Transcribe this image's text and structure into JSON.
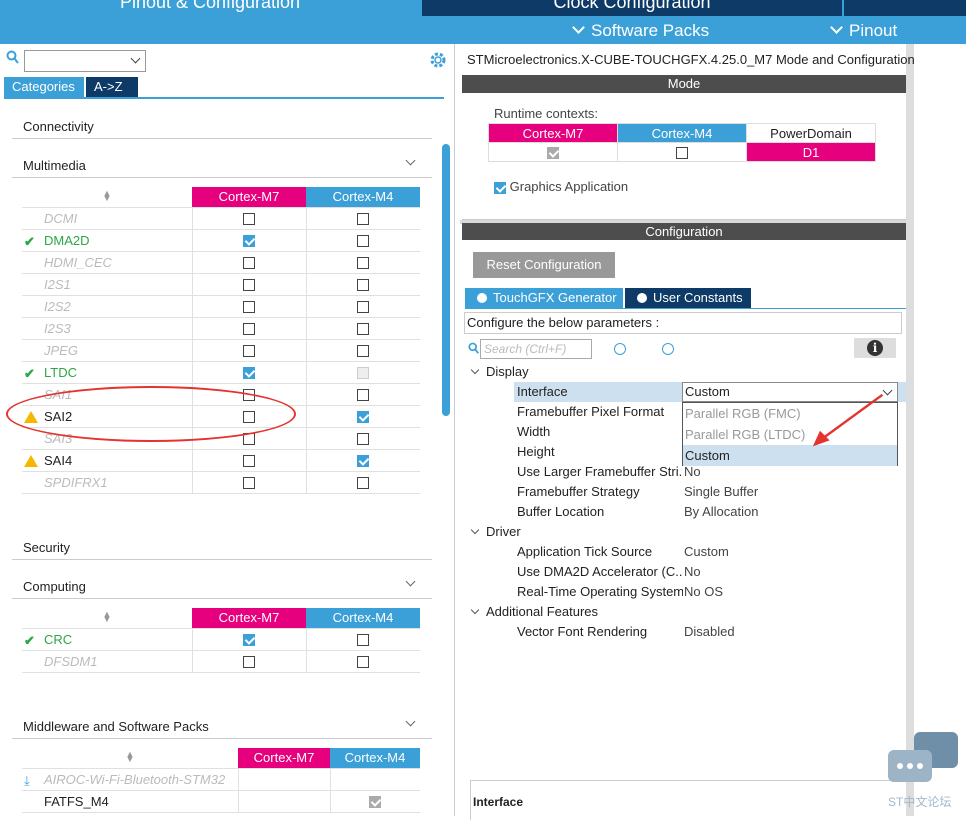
{
  "topnav": {
    "tab_pinout_config": "Pinout & Configuration",
    "tab_clock_config": "Clock Configuration",
    "software_packs": "Software Packs",
    "pinout": "Pinout"
  },
  "left": {
    "search_placeholder": "",
    "tab_categories": "Categories",
    "tab_az": "A->Z",
    "sections": {
      "connectivity": "Connectivity",
      "multimedia": "Multimedia",
      "security": "Security",
      "computing": "Computing",
      "middleware": "Middleware and Software Packs"
    },
    "col_m7": "Cortex-M7",
    "col_m4": "Cortex-M4",
    "multimedia_rows": [
      {
        "name": "DCMI",
        "state": "disabled",
        "m7": "off",
        "m4": "off"
      },
      {
        "name": "DMA2D",
        "state": "ok",
        "m7": "on",
        "m4": "off"
      },
      {
        "name": "HDMI_CEC",
        "state": "disabled",
        "m7": "off",
        "m4": "off"
      },
      {
        "name": "I2S1",
        "state": "disabled",
        "m7": "off",
        "m4": "off"
      },
      {
        "name": "I2S2",
        "state": "disabled",
        "m7": "off",
        "m4": "off"
      },
      {
        "name": "I2S3",
        "state": "disabled",
        "m7": "off",
        "m4": "off"
      },
      {
        "name": "JPEG",
        "state": "disabled",
        "m7": "off",
        "m4": "off"
      },
      {
        "name": "LTDC",
        "state": "ok",
        "m7": "on",
        "m4": "grey"
      },
      {
        "name": "SAI1",
        "state": "disabled",
        "m7": "off",
        "m4": "off"
      },
      {
        "name": "SAI2",
        "state": "warn",
        "m7": "off",
        "m4": "on"
      },
      {
        "name": "SAI3",
        "state": "disabled",
        "m7": "off",
        "m4": "off"
      },
      {
        "name": "SAI4",
        "state": "warn",
        "m7": "off",
        "m4": "on"
      },
      {
        "name": "SPDIFRX1",
        "state": "disabled",
        "m7": "off",
        "m4": "off"
      }
    ],
    "computing_rows": [
      {
        "name": "CRC",
        "state": "ok",
        "m7": "on",
        "m4": "off"
      },
      {
        "name": "DFSDM1",
        "state": "disabled",
        "m7": "off",
        "m4": "off"
      }
    ],
    "middleware_rows": [
      {
        "name": "AIROC-Wi-Fi-Bluetooth-STM32",
        "state": "pack",
        "m7": "",
        "m4": ""
      },
      {
        "name": "FATFS_M4",
        "state": "normal",
        "m7": "",
        "m4": "greyon"
      }
    ]
  },
  "right": {
    "title": "STMicroelectronics.X-CUBE-TOUCHGFX.4.25.0_M7 Mode and Configuration",
    "mode_bar": "Mode",
    "runtime_contexts": "Runtime contexts:",
    "ctx_m7": "Cortex-M7",
    "ctx_m4": "Cortex-M4",
    "ctx_power": "PowerDomain",
    "ctx_d1": "D1",
    "graphics_app": "Graphics Application",
    "config_bar": "Configuration",
    "reset_btn": "Reset Configuration",
    "tab_touchgfx": "TouchGFX Generator",
    "tab_user_constants": "User Constants",
    "configure_text": "Configure the below parameters :",
    "search_placeholder": "Search (Ctrl+F)",
    "groups": {
      "display": "Display",
      "driver": "Driver",
      "additional": "Additional Features"
    },
    "params": [
      {
        "key": "Interface",
        "value": "Custom"
      },
      {
        "key": "Framebuffer Pixel Format",
        "value": ""
      },
      {
        "key": "Width",
        "value": ""
      },
      {
        "key": "Height",
        "value": ""
      },
      {
        "key": "Use Larger Framebuffer Stri...",
        "value": "No"
      },
      {
        "key": "Framebuffer Strategy",
        "value": "Single Buffer"
      },
      {
        "key": "Buffer Location",
        "value": "By Allocation"
      },
      {
        "key": "Application Tick Source",
        "value": "Custom"
      },
      {
        "key": "Use DMA2D Accelerator (C...",
        "value": "No"
      },
      {
        "key": "Real-Time Operating System",
        "value": "No OS"
      },
      {
        "key": "Vector Font Rendering",
        "value": "Disabled"
      }
    ],
    "dropdown_options": [
      "Parallel RGB (FMC)",
      "Parallel RGB (LTDC)",
      "Custom"
    ],
    "bottom_label": "Interface"
  },
  "watermark": "ST中文论坛",
  "colors": {
    "accent": "#3ca0d8",
    "navy": "#0d3a66",
    "magenta": "#e6007e",
    "ok": "#2aa845",
    "warn": "#f5b800"
  }
}
